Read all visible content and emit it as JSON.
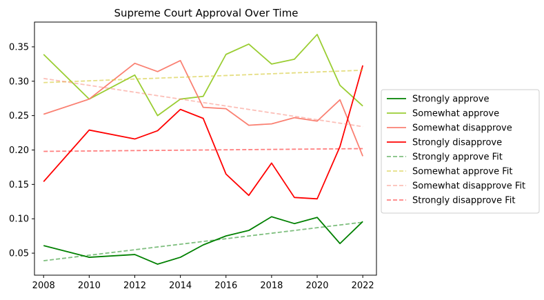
{
  "chart_data": {
    "type": "line",
    "title": "Supreme Court Approval Over Time",
    "xlabel": "",
    "ylabel": "",
    "xlim": [
      2007.6,
      2022.6
    ],
    "ylim": [
      0.018,
      0.386
    ],
    "x_ticks": [
      2008,
      2010,
      2012,
      2014,
      2016,
      2018,
      2020,
      2022
    ],
    "y_ticks": [
      0.05,
      0.1,
      0.15,
      0.2,
      0.25,
      0.3,
      0.35
    ],
    "y_tick_labels": [
      "0.05",
      "0.10",
      "0.15",
      "0.20",
      "0.25",
      "0.30",
      "0.35"
    ],
    "grid": false,
    "legend_position": "center-right-outside",
    "x": [
      2008,
      2010,
      2012,
      2013,
      2014,
      2015,
      2016,
      2017,
      2018,
      2019,
      2020,
      2021,
      2022
    ],
    "series": [
      {
        "name": "Strongly approve",
        "style": "solid",
        "color": "#008000",
        "values": [
          0.061,
          0.044,
          0.048,
          0.034,
          0.044,
          0.062,
          0.075,
          0.083,
          0.103,
          0.093,
          0.102,
          0.064,
          0.096
        ]
      },
      {
        "name": "Somewhat approve",
        "style": "solid",
        "color": "#9acd32",
        "values": [
          0.339,
          0.274,
          0.309,
          0.25,
          0.274,
          0.278,
          0.339,
          0.354,
          0.325,
          0.332,
          0.368,
          0.294,
          0.264
        ]
      },
      {
        "name": "Somewhat disapprove",
        "style": "solid",
        "color": "#fa8072",
        "values": [
          0.252,
          0.274,
          0.326,
          0.314,
          0.33,
          0.262,
          0.26,
          0.236,
          0.238,
          0.247,
          0.242,
          0.273,
          0.191
        ]
      },
      {
        "name": "Strongly disapprove",
        "style": "solid",
        "color": "#ff0000",
        "values": [
          0.154,
          0.229,
          0.216,
          0.228,
          0.259,
          0.246,
          0.165,
          0.134,
          0.181,
          0.131,
          0.129,
          0.205,
          0.323
        ]
      },
      {
        "name": "Strongly approve Fit",
        "style": "dashed",
        "color": "#008000",
        "opacity": 0.5,
        "x": [
          2008,
          2022
        ],
        "values": [
          0.039,
          0.095
        ]
      },
      {
        "name": "Somewhat approve Fit",
        "style": "dashed",
        "color": "#d4c830",
        "opacity": 0.6,
        "x": [
          2008,
          2022
        ],
        "values": [
          0.298,
          0.316
        ]
      },
      {
        "name": "Somewhat disapprove Fit",
        "style": "dashed",
        "color": "#fa8072",
        "opacity": 0.5,
        "x": [
          2008,
          2022
        ],
        "values": [
          0.304,
          0.234
        ]
      },
      {
        "name": "Strongly disapprove Fit",
        "style": "dashed",
        "color": "#ff0000",
        "opacity": 0.5,
        "x": [
          2008,
          2022
        ],
        "values": [
          0.198,
          0.202
        ]
      }
    ]
  }
}
